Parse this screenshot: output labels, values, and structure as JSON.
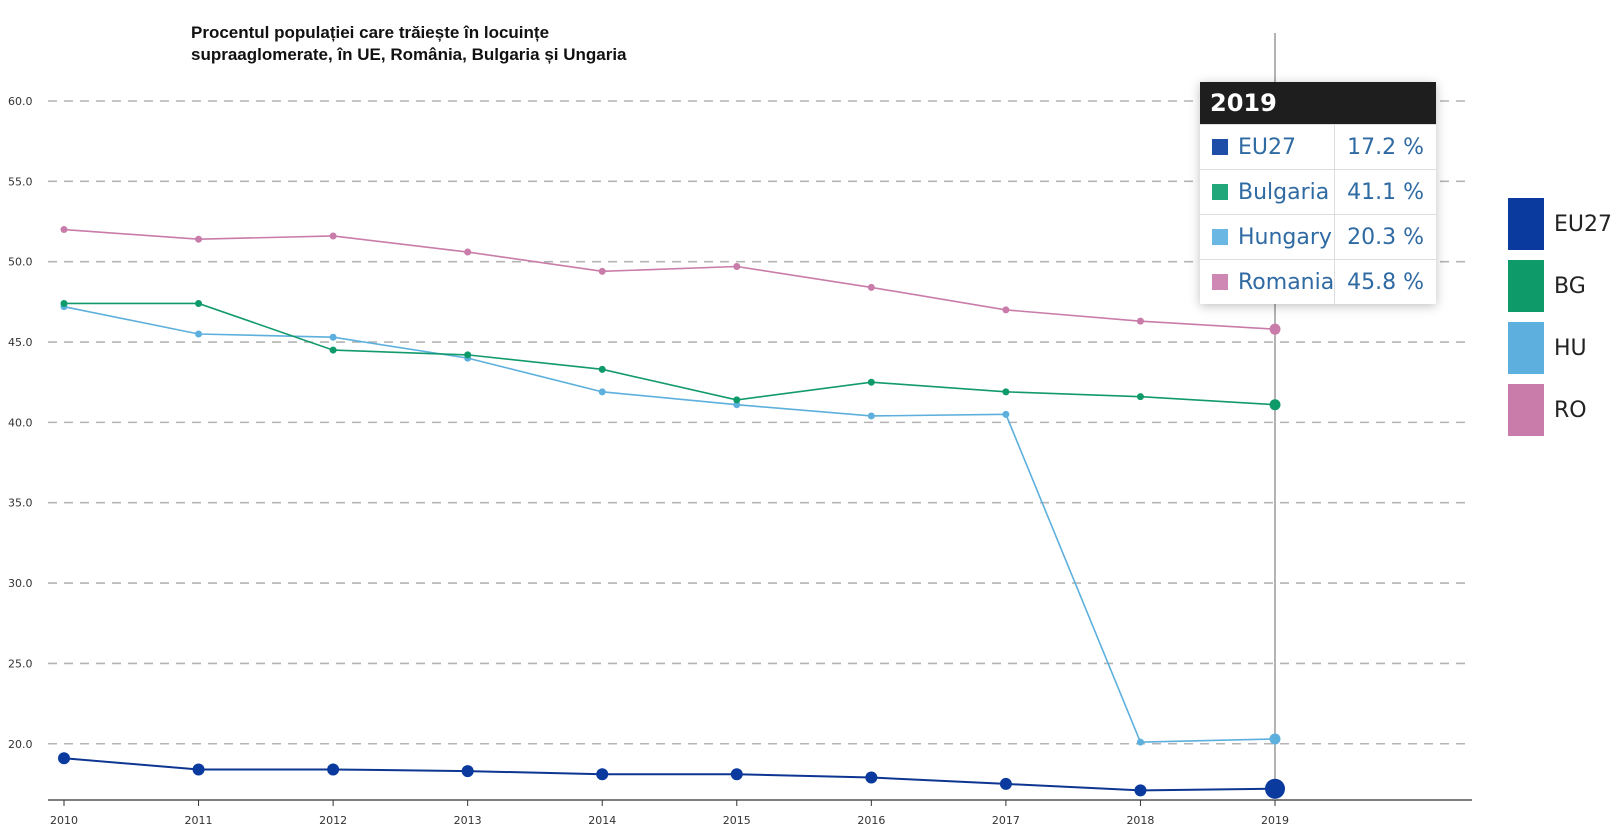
{
  "chart_data": {
    "type": "line",
    "title": "Procentul populației care trăiește în locuințe supraaglomerate, în UE, România, Bulgaria și Ungaria",
    "title_lines": [
      "Procentul populației care trăiește în locuințe",
      "supraaglomerate, în UE, România, Bulgaria și Ungaria"
    ],
    "x": [
      "2010",
      "2011",
      "2012",
      "2013",
      "2014",
      "2015",
      "2016",
      "2017",
      "2018",
      "2019"
    ],
    "y_ticks": [
      "20.0",
      "25.0",
      "30.0",
      "35.0",
      "40.0",
      "45.0",
      "50.0",
      "55.0",
      "60.0"
    ],
    "ylim": [
      16.5,
      60.0
    ],
    "grid": true,
    "grid_style": "dashed horizontal",
    "highlight_x": "2019",
    "series": [
      {
        "name": "EU27",
        "legend_label": "EU27",
        "color": "#0d3592",
        "marker_color": "#0b3a9e",
        "values": [
          19.1,
          18.4,
          18.4,
          18.3,
          18.1,
          18.1,
          17.9,
          17.5,
          17.1,
          17.2
        ]
      },
      {
        "name": "Bulgaria",
        "legend_label": "BG",
        "color": "#129a6d",
        "marker_color": "#0f9a6a",
        "values": [
          47.4,
          47.4,
          44.5,
          44.2,
          43.3,
          41.4,
          42.5,
          41.9,
          41.6,
          41.1
        ]
      },
      {
        "name": "Hungary",
        "legend_label": "HU",
        "color": "#5db0dd",
        "marker_color": "#5db0dd",
        "values": [
          47.2,
          45.5,
          45.3,
          44.0,
          41.9,
          41.1,
          40.4,
          40.5,
          20.1,
          20.3
        ]
      },
      {
        "name": "Romania",
        "legend_label": "RO",
        "color": "#c97ca9",
        "marker_color": "#c97ca9",
        "values": [
          52.0,
          51.4,
          51.6,
          50.6,
          49.4,
          49.7,
          48.4,
          47.0,
          46.3,
          45.8
        ]
      }
    ]
  },
  "tooltip": {
    "year": "2019",
    "rows": [
      {
        "name": "EU27",
        "value": "17.2 %",
        "color": "#1f4ea8"
      },
      {
        "name": "Bulgaria",
        "value": "41.1 %",
        "color": "#21a77a"
      },
      {
        "name": "Hungary",
        "value": "20.3 %",
        "color": "#6ab7e4"
      },
      {
        "name": "Romania",
        "value": "45.8 %",
        "color": "#cf87b3"
      }
    ]
  },
  "legend": [
    {
      "label": "EU27",
      "color": "#0b3a9e"
    },
    {
      "label": "BG",
      "color": "#0f9a6a"
    },
    {
      "label": "HU",
      "color": "#5db0dd"
    },
    {
      "label": "RO",
      "color": "#c97ca9"
    }
  ]
}
